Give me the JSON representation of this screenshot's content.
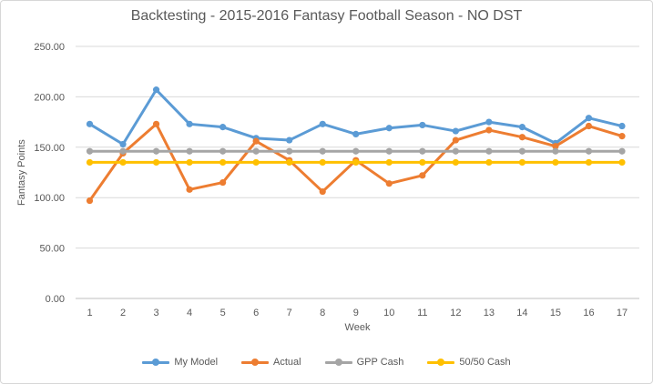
{
  "chart_data": {
    "type": "line",
    "title": "Backtesting - 2015-2016 Fantasy Football Season - NO DST",
    "xlabel": "Week",
    "ylabel": "Fantasy Points",
    "categories": [
      "1",
      "2",
      "3",
      "4",
      "5",
      "6",
      "7",
      "8",
      "9",
      "10",
      "11",
      "12",
      "13",
      "14",
      "15",
      "16",
      "17"
    ],
    "series": [
      {
        "name": "My Model",
        "color": "#5B9BD5",
        "values": [
          173,
          153,
          207,
          173,
          170,
          159,
          157,
          173,
          163,
          169,
          172,
          166,
          175,
          170,
          154,
          179,
          171
        ]
      },
      {
        "name": "Actual",
        "color": "#ED7D31",
        "values": [
          97,
          144,
          173,
          108,
          115,
          156,
          137,
          106,
          137,
          114,
          122,
          157,
          167,
          160,
          151,
          171,
          161
        ]
      },
      {
        "name": "GPP Cash",
        "color": "#A5A5A5",
        "values": [
          146,
          146,
          146,
          146,
          146,
          146,
          146,
          146,
          146,
          146,
          146,
          146,
          146,
          146,
          146,
          146,
          146
        ]
      },
      {
        "name": "50/50 Cash",
        "color": "#FFC000",
        "values": [
          135,
          135,
          135,
          135,
          135,
          135,
          135,
          135,
          135,
          135,
          135,
          135,
          135,
          135,
          135,
          135,
          135
        ]
      }
    ],
    "ylim": [
      0,
      250
    ],
    "ytick_labels": [
      "0.00",
      "50.00",
      "100.00",
      "150.00",
      "200.00",
      "250.00"
    ],
    "grid": true,
    "legend_position": "bottom",
    "grid_color": "#D9D9D9",
    "axis_line_color": "#BFBFBF",
    "text_color": "#595959"
  }
}
